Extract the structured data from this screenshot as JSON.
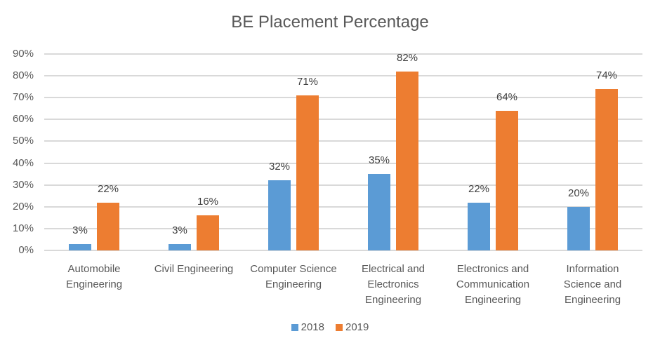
{
  "chart_data": {
    "type": "bar",
    "title": "BE Placement Percentage",
    "xlabel": "",
    "ylabel": "",
    "ylim": [
      0,
      90
    ],
    "yticks": [
      "0%",
      "10%",
      "20%",
      "30%",
      "40%",
      "50%",
      "60%",
      "70%",
      "80%",
      "90%"
    ],
    "grid": true,
    "legend_position": "bottom",
    "categories": [
      "Automobile Engineering",
      "Civil Engineering",
      "Computer Science Engineering",
      "Electrical and Electronics Engineering",
      "Electronics and Communication Engineering",
      "Information Science and Engineering"
    ],
    "series": [
      {
        "name": "2018",
        "color": "#5b9bd5",
        "values": [
          3,
          3,
          32,
          35,
          22,
          20
        ]
      },
      {
        "name": "2019",
        "color": "#ed7d31",
        "values": [
          22,
          16,
          71,
          82,
          64,
          74
        ]
      }
    ]
  },
  "labels": {
    "title": "BE Placement Percentage",
    "categories_display": [
      [
        "Automobile",
        "Engineering"
      ],
      [
        "Civil Engineering"
      ],
      [
        "Computer Science",
        "Engineering"
      ],
      [
        "Electrical and",
        "Electronics",
        "Engineering"
      ],
      [
        "Electronics and",
        "Communication",
        "Engineering"
      ],
      [
        "Information",
        "Science and",
        "Engineering"
      ]
    ],
    "legend": [
      "2018",
      "2019"
    ]
  }
}
